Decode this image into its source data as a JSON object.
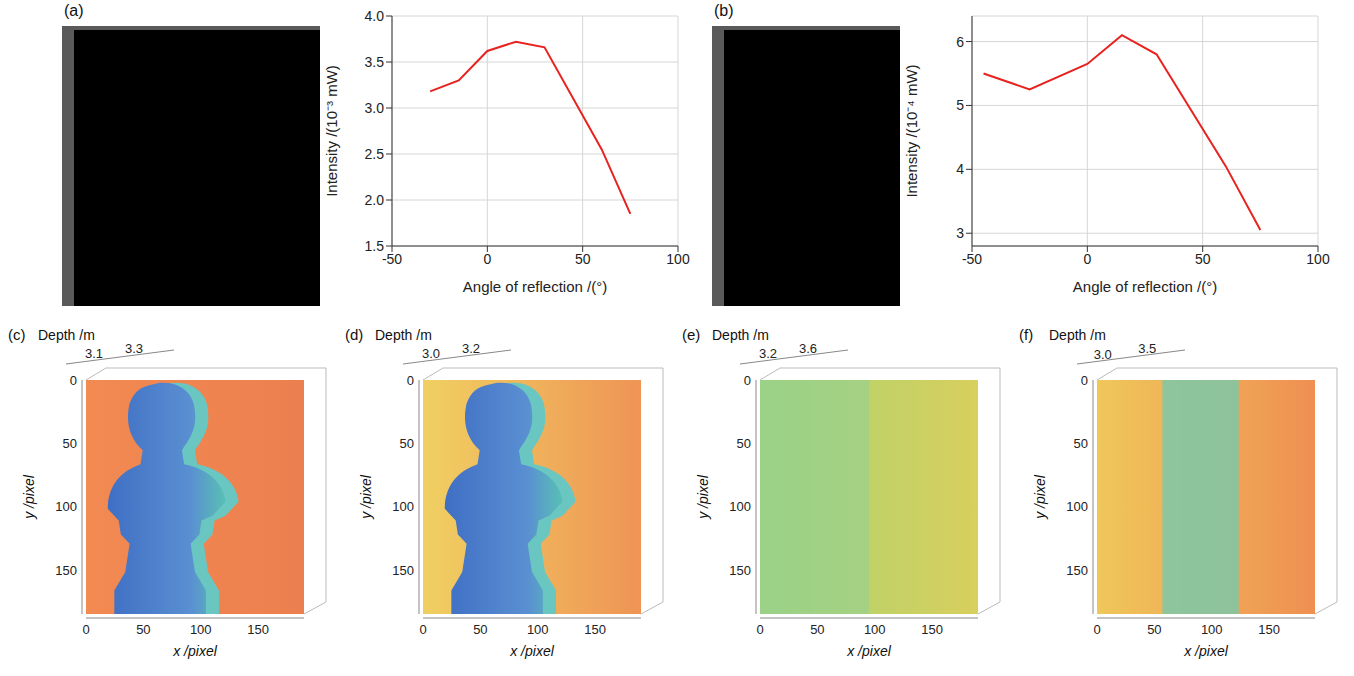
{
  "panel_labels": [
    "(a)",
    "(b)"
  ],
  "chart_data": [
    {
      "type": "line",
      "x": [
        -30,
        -15,
        0,
        15,
        30,
        60,
        75
      ],
      "values": [
        3.18,
        3.3,
        3.62,
        3.72,
        3.66,
        2.55,
        1.85
      ],
      "color": "#e8231f",
      "xlabel": "Angle of reflection /(°)",
      "ylabel": "Intensity /(10⁻³ mW)",
      "xlim": [
        -50,
        100
      ],
      "xticks": [
        -50,
        0,
        50,
        100
      ],
      "ylim": [
        1.5,
        4
      ],
      "yticks": [
        1.5,
        {
          "value": 2,
          "label": "2.0"
        },
        2.5,
        {
          "value": 3,
          "label": "3.0"
        },
        3.5,
        {
          "value": 4,
          "label": "4.0"
        }
      ],
      "grid": true
    },
    {
      "type": "line",
      "x": [
        -45,
        -25,
        0,
        15,
        30,
        60,
        75
      ],
      "values": [
        5.5,
        5.25,
        5.65,
        6.1,
        5.8,
        4.05,
        3.05
      ],
      "color": "#e8231f",
      "xlabel": "Angle of reflection /(°)",
      "ylabel": "Intensity /(10⁻⁴ mW)",
      "xlim": [
        -50,
        100
      ],
      "xticks": [
        -50,
        0,
        50,
        100
      ],
      "ylim": [
        2.8,
        6.4
      ],
      "yticks": [
        3,
        4,
        5,
        6
      ],
      "grid": true
    }
  ],
  "point_clouds": [
    {
      "panel": "(c)",
      "zlabel": "Depth /m",
      "zlim": [
        3.0,
        3.4
      ],
      "zticks": [
        3.1,
        3.3
      ],
      "xlabel": "x /pixel",
      "ylabel": "y /pixel",
      "xlim": [
        0,
        190
      ],
      "xticks": [
        0,
        50,
        100,
        150
      ],
      "ylim": [
        0,
        185
      ],
      "yticks": [
        0,
        50,
        100,
        150
      ]
    },
    {
      "panel": "(d)",
      "zlabel": "Depth /m",
      "zlim": [
        2.9,
        3.3
      ],
      "zticks": [
        {
          "value": 3,
          "label": "3.0"
        },
        3.2
      ],
      "xlabel": "x /pixel",
      "ylabel": "y /pixel",
      "xlim": [
        0,
        190
      ],
      "xticks": [
        0,
        50,
        100,
        150
      ],
      "ylim": [
        0,
        185
      ],
      "yticks": [
        0,
        50,
        100,
        150
      ]
    },
    {
      "panel": "(e)",
      "zlabel": "Depth /m",
      "zlim": [
        3.0,
        3.8
      ],
      "zticks": [
        3.2,
        3.6
      ],
      "xlabel": "x /pixel",
      "ylabel": "y /pixel",
      "xlim": [
        0,
        190
      ],
      "xticks": [
        0,
        50,
        100,
        150
      ],
      "ylim": [
        0,
        185
      ],
      "yticks": [
        0,
        50,
        100,
        150
      ]
    },
    {
      "panel": "(f)",
      "zlabel": "Depth /m",
      "zlim": [
        2.8,
        3.7
      ],
      "zticks": [
        {
          "value": 3,
          "label": "3.0"
        },
        3.5
      ],
      "xlabel": "x /pixel",
      "ylabel": "y /pixel",
      "xlim": [
        0,
        190
      ],
      "xticks": [
        0,
        50,
        100,
        150
      ],
      "ylim": [
        0,
        185
      ],
      "yticks": [
        0,
        50,
        100,
        150
      ]
    }
  ]
}
